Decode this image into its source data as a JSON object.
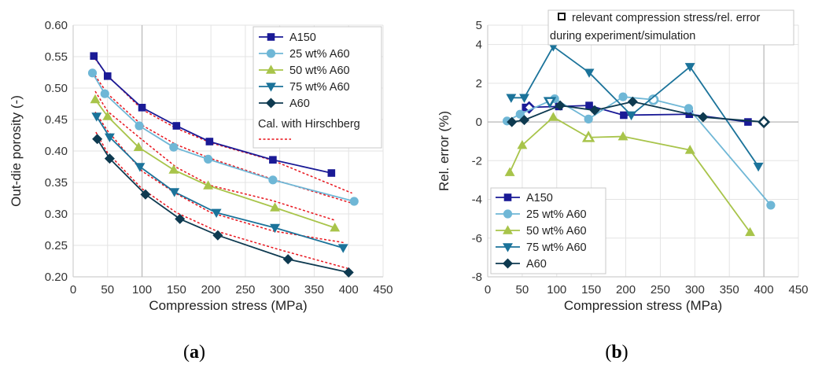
{
  "colors": {
    "A150": "#1a1a96",
    "25 wt% A60": "#6fb7d6",
    "50 wt% A60": "#a8c44a",
    "75 wt% A60": "#1b739a",
    "A60": "#0e3a50",
    "fit": "#e8141c",
    "grid": "#e3e3e3",
    "axis": "#cfcfcf"
  },
  "panel_labels": {
    "a": "a",
    "b": "b"
  },
  "chart_data": [
    {
      "type": "line",
      "panel": "a",
      "xlabel": "Compression stress (MPa)",
      "ylabel": "Out-die porosity (-)",
      "xlim": [
        0,
        450
      ],
      "ylim": [
        0.2,
        0.6
      ],
      "xticks": [
        0,
        50,
        100,
        150,
        200,
        250,
        300,
        350,
        400,
        450
      ],
      "yticks": [
        "0.20",
        "0.25",
        "0.30",
        "0.35",
        "0.40",
        "0.45",
        "0.50",
        "0.55",
        "0.60"
      ],
      "grid": true,
      "legend_position": "top-right",
      "legend": [
        "A150",
        "25 wt% A60",
        "50 wt% A60",
        "75 wt% A60",
        "A60",
        "Cal. with Hirschberg"
      ],
      "series": [
        {
          "name": "A150",
          "marker": "square",
          "x": [
            30,
            50,
            100,
            150,
            198,
            290,
            375
          ],
          "y": [
            0.551,
            0.519,
            0.469,
            0.44,
            0.415,
            0.386,
            0.365
          ]
        },
        {
          "name": "25 wt% A60",
          "marker": "circle",
          "x": [
            28,
            46,
            96,
            146,
            196,
            290,
            408
          ],
          "y": [
            0.524,
            0.491,
            0.44,
            0.406,
            0.387,
            0.354,
            0.32
          ]
        },
        {
          "name": "50 wt% A60",
          "marker": "triangle-up",
          "x": [
            32,
            50,
            95,
            146,
            196,
            293,
            380
          ],
          "y": [
            0.482,
            0.455,
            0.406,
            0.37,
            0.345,
            0.31,
            0.278
          ]
        },
        {
          "name": "75 wt% A60",
          "marker": "triangle-down",
          "x": [
            34,
            53,
            97,
            147,
            208,
            293,
            392
          ],
          "y": [
            0.455,
            0.422,
            0.375,
            0.335,
            0.302,
            0.278,
            0.246
          ]
        },
        {
          "name": "A60",
          "marker": "diamond",
          "x": [
            35,
            53,
            105,
            155,
            210,
            312,
            400
          ],
          "y": [
            0.419,
            0.388,
            0.331,
            0.292,
            0.266,
            0.228,
            0.207
          ]
        }
      ],
      "fit_curves": [
        {
          "x": [
            28,
            50,
            100,
            150,
            200,
            290,
            405
          ],
          "y": [
            0.552,
            0.52,
            0.466,
            0.436,
            0.413,
            0.385,
            0.333
          ]
        },
        {
          "x": [
            28,
            50,
            100,
            150,
            200,
            290,
            405
          ],
          "y": [
            0.526,
            0.491,
            0.441,
            0.41,
            0.388,
            0.355,
            0.317
          ]
        },
        {
          "x": [
            32,
            50,
            100,
            150,
            200,
            290,
            380
          ],
          "y": [
            0.495,
            0.463,
            0.418,
            0.374,
            0.345,
            0.321,
            0.29
          ]
        },
        {
          "x": [
            32,
            50,
            100,
            150,
            200,
            290,
            395
          ],
          "y": [
            0.462,
            0.432,
            0.368,
            0.332,
            0.302,
            0.273,
            0.254
          ]
        },
        {
          "x": [
            33,
            50,
            100,
            150,
            210,
            300,
            400
          ],
          "y": [
            0.43,
            0.397,
            0.34,
            0.302,
            0.272,
            0.243,
            0.213
          ]
        }
      ]
    },
    {
      "type": "line",
      "panel": "b",
      "xlabel": "Compression stress (MPa)",
      "ylabel": "Rel. error (%)",
      "xlim": [
        0,
        450
      ],
      "ylim": [
        -8,
        5
      ],
      "xticks": [
        0,
        50,
        100,
        150,
        200,
        250,
        300,
        350,
        400,
        450
      ],
      "yticks": [
        "5",
        "4",
        "2",
        "0",
        "-2",
        "-4",
        "-6",
        "-8"
      ],
      "grid": true,
      "legend_position": "bottom-left",
      "legend": [
        "A150",
        "25 wt% A60",
        "50 wt% A60",
        "75 wt% A60",
        "A60"
      ],
      "note_line1": "relevant compression stress/rel. error",
      "note_line2": "during experiment/simulation",
      "series": [
        {
          "name": "A150",
          "marker": "square",
          "x": [
            55,
            103,
            147,
            197,
            292,
            377
          ],
          "y": [
            0.75,
            0.8,
            0.85,
            0.35,
            0.4,
            0.0
          ],
          "relevant": {
            "x": 60,
            "y": 0.75,
            "marker": "diamond"
          }
        },
        {
          "name": "25 wt% A60",
          "marker": "circle",
          "x": [
            28,
            47,
            97,
            146,
            196,
            240,
            291,
            410
          ],
          "y": [
            0.05,
            0.4,
            1.2,
            0.15,
            1.3,
            1.15,
            0.7,
            -4.3
          ],
          "relevant": {
            "x": 240,
            "y": 1.15,
            "marker": "circle"
          }
        },
        {
          "name": "50 wt% A60",
          "marker": "triangle-up",
          "x": [
            32,
            50,
            95,
            146,
            196,
            293,
            380
          ],
          "y": [
            -2.6,
            -1.2,
            0.25,
            -0.8,
            -0.75,
            -1.45,
            -5.7
          ],
          "relevant": {
            "x": 146,
            "y": -0.8,
            "marker": "triangle-up"
          }
        },
        {
          "name": "75 wt% A60",
          "marker": "triangle-down",
          "x": [
            34,
            53,
            95,
            147,
            208,
            293,
            392
          ],
          "y": [
            1.25,
            1.25,
            3.9,
            2.55,
            0.35,
            2.85,
            -2.3
          ],
          "relevant": {
            "x": 90,
            "y": 1.05,
            "marker": "triangle-down"
          }
        },
        {
          "name": "A60",
          "marker": "diamond",
          "x": [
            35,
            53,
            105,
            155,
            210,
            312,
            400
          ],
          "y": [
            0.0,
            0.1,
            0.85,
            0.6,
            1.05,
            0.25,
            0.0
          ],
          "relevant": {
            "x": 400,
            "y": 0.0,
            "marker": "diamond"
          }
        }
      ]
    }
  ]
}
